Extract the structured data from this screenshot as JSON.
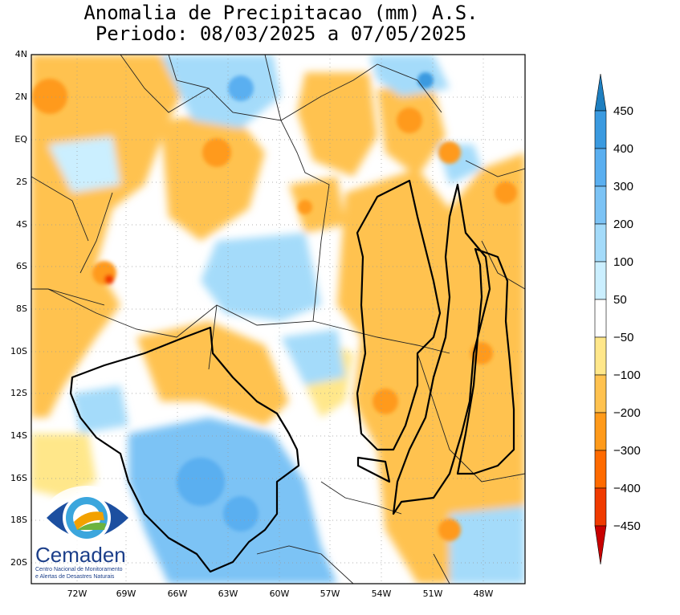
{
  "title_line1": "Anomalia de Precipitacao (mm) A.S.",
  "title_line2": "Periodo: 08/03/2025 a 07/05/2025",
  "y_ticks": [
    "4N",
    "2N",
    "EQ",
    "2S",
    "4S",
    "6S",
    "8S",
    "10S",
    "12S",
    "14S",
    "16S",
    "18S",
    "20S"
  ],
  "x_ticks": [
    "72W",
    "69W",
    "66W",
    "63W",
    "60W",
    "57W",
    "54W",
    "51W",
    "48W"
  ],
  "colorbar": {
    "labels": [
      "450",
      "400",
      "300",
      "200",
      "100",
      "50",
      "−50",
      "−100",
      "−200",
      "−300",
      "−400",
      "−450"
    ],
    "colors_top_to_bottom": [
      "#1e7fc0",
      "#3a9ae0",
      "#5aaff0",
      "#7cc3f5",
      "#a4dbfa",
      "#cbefff",
      "#ffffff",
      "#ffe78a",
      "#ffc24f",
      "#ff9a1a",
      "#ff6a00",
      "#f03a00",
      "#c80000"
    ]
  },
  "logo": {
    "name": "Cemaden",
    "subtitle1": "Centro Nacional de Monitoramento",
    "subtitle2": "e Alertas de Desastres Naturais"
  }
}
